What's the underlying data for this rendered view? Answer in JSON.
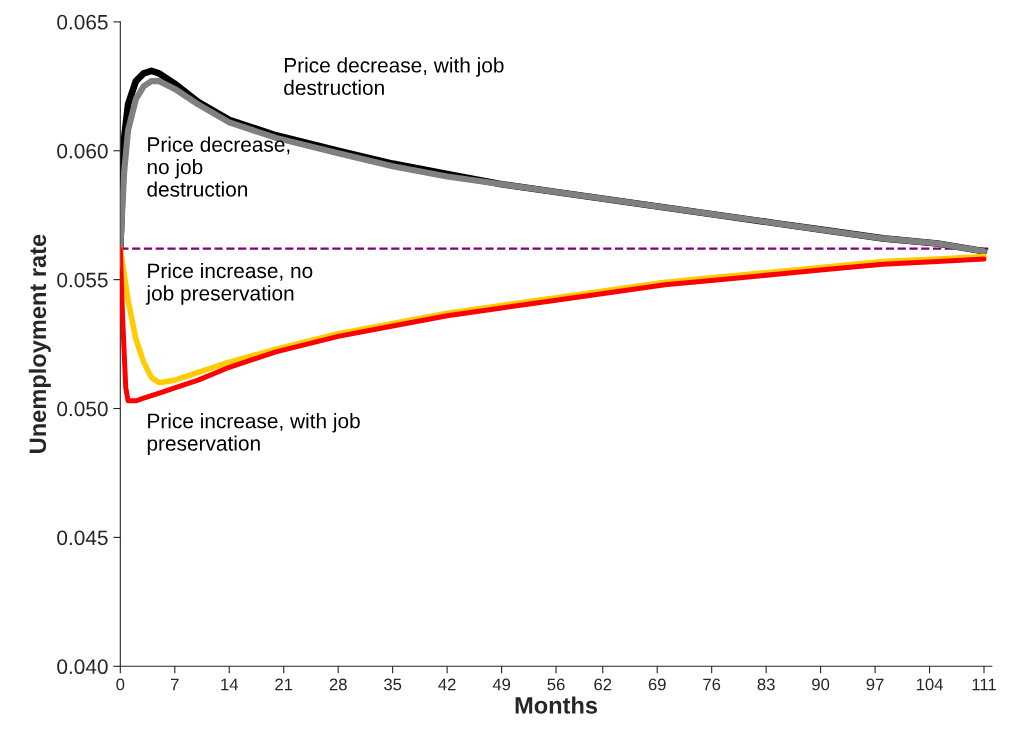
{
  "chart_data": {
    "type": "line",
    "xlabel": "Months",
    "ylabel": "Unemployment rate",
    "xlim": [
      0,
      112
    ],
    "xticks": [
      0,
      7,
      14,
      21,
      28,
      35,
      42,
      49,
      56,
      62,
      69,
      76,
      83,
      90,
      97,
      104,
      111
    ],
    "ylim": [
      0.04,
      0.065
    ],
    "yticks": [
      {
        "value": 0.04,
        "label": "0.040"
      },
      {
        "value": 0.045,
        "label": "0.045"
      },
      {
        "value": 0.05,
        "label": "0.050"
      },
      {
        "value": 0.055,
        "label": "0.055"
      },
      {
        "value": 0.06,
        "label": "0.060"
      },
      {
        "value": 0.065,
        "label": "0.065"
      }
    ],
    "grid": false,
    "legend": false,
    "marker": "none",
    "line_style": "solid",
    "ref_lines": [
      {
        "axis": "y",
        "value": 0.0562,
        "color": "#800080",
        "line_style": "dashed"
      }
    ],
    "series": [
      {
        "name": "Price decrease, with job\ndestruction",
        "color": "#000000",
        "x": [
          0,
          0.5,
          1,
          2,
          3,
          4,
          5,
          7,
          10,
          14,
          20,
          28,
          35,
          42,
          49,
          56,
          63,
          70,
          77,
          84,
          91,
          98,
          105,
          111
        ],
        "values": [
          0.0562,
          0.0605,
          0.0618,
          0.0627,
          0.063,
          0.0631,
          0.063,
          0.0626,
          0.0619,
          0.0612,
          0.0606,
          0.06,
          0.0595,
          0.0591,
          0.0587,
          0.0584,
          0.0581,
          0.0578,
          0.0575,
          0.0572,
          0.0569,
          0.0566,
          0.0564,
          0.0561
        ]
      },
      {
        "name": "Price decrease,\nno job\ndestruction",
        "color": "#808080",
        "x": [
          0,
          0.5,
          1,
          2,
          3,
          4,
          5,
          7,
          10,
          14,
          20,
          28,
          35,
          42,
          49,
          56,
          63,
          70,
          77,
          84,
          91,
          98,
          105,
          111
        ],
        "values": [
          0.0562,
          0.0592,
          0.0608,
          0.062,
          0.0625,
          0.0627,
          0.0627,
          0.0624,
          0.0618,
          0.0611,
          0.0605,
          0.0599,
          0.0594,
          0.059,
          0.0587,
          0.0584,
          0.0581,
          0.0578,
          0.0575,
          0.0572,
          0.0569,
          0.0566,
          0.0564,
          0.0561
        ]
      },
      {
        "name": "Price increase, no\njob preservation",
        "color": "#ffcc00",
        "x": [
          0,
          0.5,
          1,
          2,
          3,
          4,
          5,
          7,
          10,
          14,
          20,
          28,
          35,
          42,
          49,
          56,
          63,
          70,
          77,
          84,
          91,
          98,
          105,
          111
        ],
        "values": [
          0.0562,
          0.0552,
          0.0542,
          0.0527,
          0.0518,
          0.0512,
          0.051,
          0.0511,
          0.0514,
          0.0518,
          0.0523,
          0.0529,
          0.0533,
          0.0537,
          0.054,
          0.0543,
          0.0546,
          0.0549,
          0.0551,
          0.0553,
          0.0555,
          0.0557,
          0.0558,
          0.0559
        ]
      },
      {
        "name": "Price increase, with job\npreservation",
        "color": "#ff0000",
        "x": [
          0,
          0.3,
          0.7,
          1,
          2,
          3,
          5,
          7,
          10,
          14,
          20,
          28,
          35,
          42,
          49,
          56,
          63,
          70,
          77,
          84,
          91,
          98,
          105,
          111
        ],
        "values": [
          0.0562,
          0.0535,
          0.0508,
          0.0503,
          0.0503,
          0.0504,
          0.0506,
          0.0508,
          0.0511,
          0.0516,
          0.0522,
          0.0528,
          0.0532,
          0.0536,
          0.0539,
          0.0542,
          0.0545,
          0.0548,
          0.055,
          0.0552,
          0.0554,
          0.0556,
          0.0557,
          0.0558
        ]
      }
    ]
  }
}
